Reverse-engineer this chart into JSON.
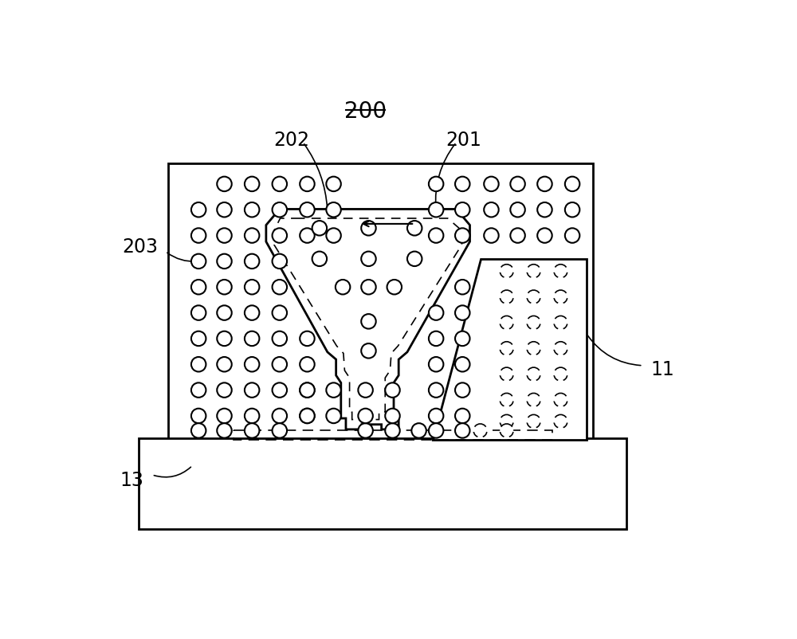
{
  "label_200": "200",
  "label_201": "201",
  "label_202": "202",
  "label_203": "203",
  "label_11": "11",
  "label_13": "13",
  "bg_color": "#ffffff",
  "line_color": "#000000",
  "fig_width": 10.0,
  "fig_height": 8.03
}
